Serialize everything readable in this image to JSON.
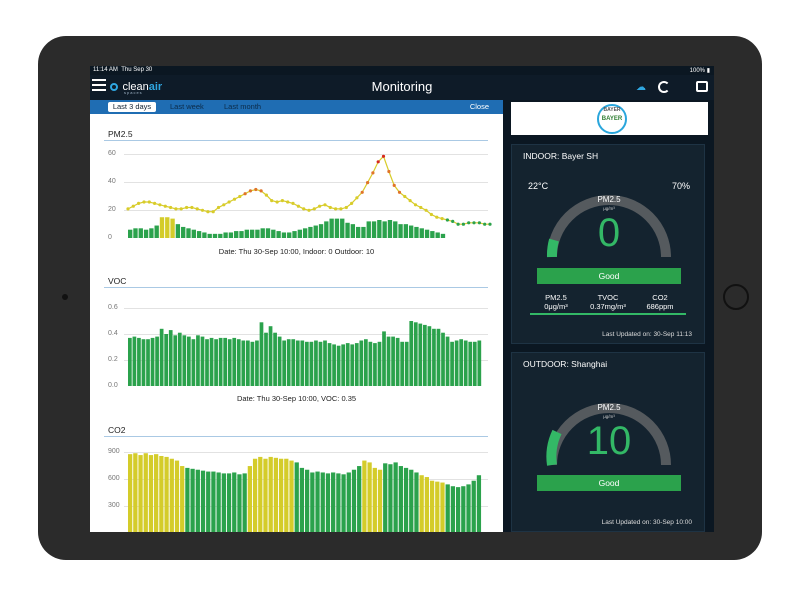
{
  "status_bar": {
    "time": "11:14 AM",
    "date": "Thu Sep 30",
    "battery": "100%"
  },
  "nav": {
    "title": "Monitoring",
    "logo_word1": "clean",
    "logo_word2": "air",
    "logo_sub": "spaces"
  },
  "tabs": {
    "items": [
      "Last 3 days",
      "Last week",
      "Last month"
    ],
    "selected": "Last 3 days",
    "close_label": "Close"
  },
  "charts": {
    "pm25": {
      "title": "PM2.5",
      "yticks": [
        "60",
        "40",
        "20",
        "0"
      ],
      "caption": "Date: Thu 30-Sep  10:00,   Indoor: 0    Outdoor: 10"
    },
    "voc": {
      "title": "VOC",
      "yticks": [
        "0.6",
        "0.4",
        "0.2",
        "0.0"
      ],
      "caption": "Date: Thu 30-Sep  10:00,   VOC: 0.35"
    },
    "co2": {
      "title": "CO2",
      "yticks": [
        "900",
        "600",
        "300"
      ]
    }
  },
  "chart_data": [
    {
      "type": "bar",
      "title": "PM2.5",
      "ylim": [
        0,
        65
      ],
      "series": [
        {
          "name": "Indoor",
          "values": [
            6,
            7,
            7,
            6,
            7,
            9,
            15,
            15,
            14,
            10,
            8,
            7,
            6,
            5,
            4,
            3,
            3,
            3,
            4,
            4,
            5,
            5,
            6,
            6,
            6,
            7,
            7,
            6,
            5,
            4,
            4,
            5,
            6,
            7,
            8,
            9,
            10,
            12,
            14,
            14,
            14,
            11,
            10,
            8,
            8,
            12,
            12,
            13,
            12,
            13,
            12,
            10,
            10,
            9,
            8,
            7,
            6,
            5,
            4,
            3,
            0,
            0,
            0
          ]
        },
        {
          "name": "Outdoor",
          "values": [
            21,
            23,
            25,
            26,
            26,
            25,
            24,
            23,
            22,
            21,
            21,
            22,
            22,
            21,
            20,
            19,
            19,
            22,
            24,
            26,
            28,
            30,
            32,
            34,
            35,
            34,
            31,
            27,
            26,
            27,
            26,
            25,
            23,
            21,
            20,
            21,
            23,
            24,
            22,
            21,
            21,
            22,
            25,
            29,
            33,
            40,
            47,
            55,
            59,
            48,
            38,
            33,
            30,
            27,
            24,
            22,
            20,
            17,
            15,
            14,
            13,
            12,
            10,
            10,
            11,
            11,
            11,
            10,
            10
          ]
        }
      ],
      "highlight_color": "#d4cc2a"
    },
    {
      "type": "bar",
      "title": "VOC",
      "ylim": [
        0,
        0.6
      ],
      "series": [
        {
          "name": "VOC",
          "values": [
            0.37,
            0.38,
            0.37,
            0.36,
            0.36,
            0.37,
            0.38,
            0.44,
            0.4,
            0.43,
            0.39,
            0.41,
            0.39,
            0.38,
            0.36,
            0.39,
            0.38,
            0.36,
            0.37,
            0.36,
            0.37,
            0.37,
            0.36,
            0.37,
            0.36,
            0.35,
            0.35,
            0.34,
            0.35,
            0.49,
            0.41,
            0.46,
            0.41,
            0.38,
            0.35,
            0.36,
            0.36,
            0.35,
            0.35,
            0.34,
            0.34,
            0.35,
            0.34,
            0.35,
            0.33,
            0.32,
            0.31,
            0.32,
            0.33,
            0.32,
            0.33,
            0.35,
            0.36,
            0.34,
            0.33,
            0.34,
            0.42,
            0.38,
            0.38,
            0.37,
            0.34,
            0.34,
            0.5,
            0.49,
            0.48,
            0.47,
            0.46,
            0.44,
            0.44,
            0.41,
            0.38,
            0.34,
            0.35,
            0.36,
            0.35,
            0.34,
            0.34,
            0.35
          ]
        }
      ]
    },
    {
      "type": "bar",
      "title": "CO2",
      "ylim": [
        0,
        950
      ],
      "series": [
        {
          "name": "CO2",
          "values": [
            850,
            860,
            840,
            860,
            840,
            850,
            830,
            820,
            800,
            780,
            720,
            700,
            690,
            680,
            670,
            660,
            660,
            650,
            640,
            640,
            650,
            630,
            640,
            720,
            800,
            820,
            800,
            820,
            810,
            800,
            800,
            780,
            760,
            700,
            680,
            650,
            660,
            650,
            640,
            650,
            640,
            630,
            650,
            680,
            720,
            780,
            760,
            700,
            680,
            750,
            740,
            760,
            720,
            700,
            680,
            650,
            620,
            600,
            560,
            550,
            540,
            520,
            500,
            490,
            500,
            520,
            560,
            620
          ]
        }
      ],
      "highlight_color": "#d4cc2a"
    }
  ],
  "indoor": {
    "title": "INDOOR: Bayer SH",
    "temperature": "22°C",
    "humidity": "70%",
    "gauge_label": "PM2.5",
    "gauge_unit": "μg/m³",
    "gauge_value": "0",
    "status": "Good",
    "metrics": [
      {
        "label": "PM2.5",
        "value": "0μg/m³"
      },
      {
        "label": "TVOC",
        "value": "0.37mg/m³"
      },
      {
        "label": "CO2",
        "value": "686ppm"
      }
    ],
    "updated": "Last Updated on: 30-Sep  11:13"
  },
  "outdoor": {
    "title": "OUTDOOR: Shanghai",
    "gauge_label": "PM2.5",
    "gauge_unit": "μg/m³",
    "gauge_value": "10",
    "status": "Good",
    "updated": "Last Updated on: 30-Sep  10:00"
  },
  "brand": {
    "logo_text": "BAYER"
  },
  "colors": {
    "bar_green": "#2ba24c",
    "bar_yellow": "#d4cc2a",
    "line_yellow": "#d8cc2a",
    "peak_orange": "#e0742a",
    "peak_red": "#d62a1e",
    "tab_blue": "#1f6db3",
    "gauge_green": "#33b866",
    "gauge_grey": "#555a5e"
  }
}
